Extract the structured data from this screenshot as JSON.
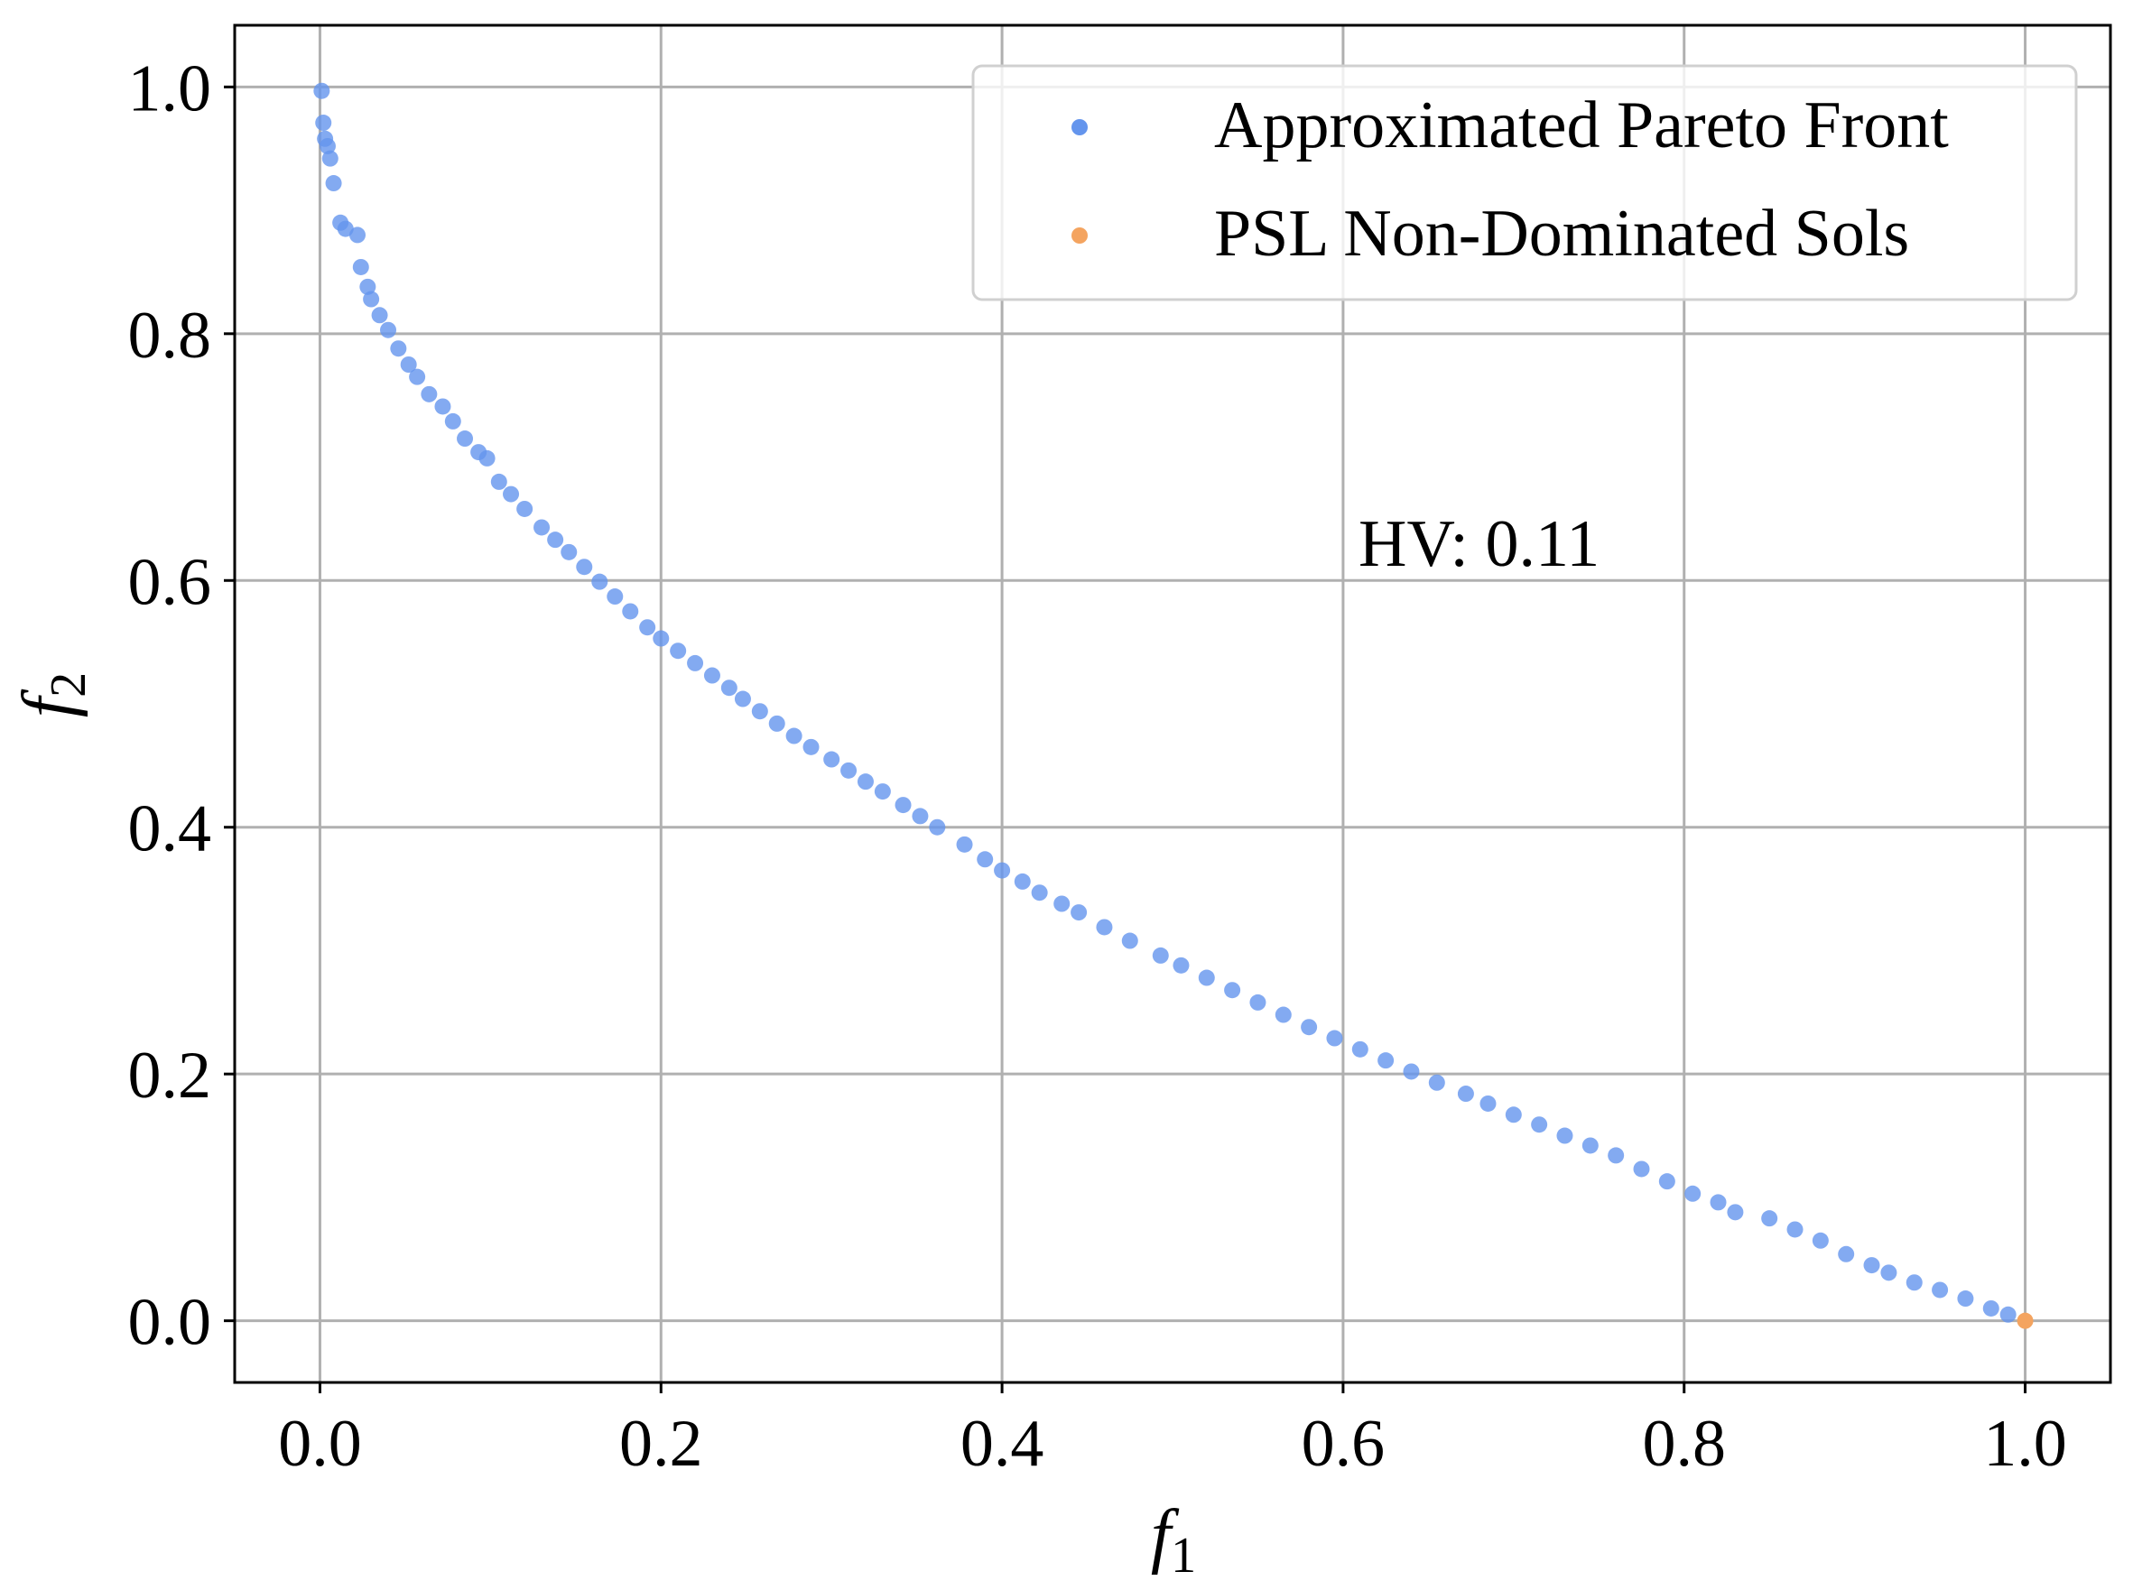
{
  "chart_data": {
    "type": "scatter",
    "title": "",
    "xlabel": "f",
    "xlabel_sub": "1",
    "ylabel": "f",
    "ylabel_sub": "2",
    "xlim": [
      -0.05,
      1.05
    ],
    "ylim": [
      -0.05,
      1.05
    ],
    "xticks": [
      0.0,
      0.2,
      0.4,
      0.6,
      0.8,
      1.0
    ],
    "yticks": [
      0.0,
      0.2,
      0.4,
      0.6,
      0.8,
      1.0
    ],
    "xtick_labels": [
      "0.0",
      "0.2",
      "0.4",
      "0.6",
      "0.8",
      "1.0"
    ],
    "ytick_labels": [
      "0.0",
      "0.2",
      "0.4",
      "0.6",
      "0.8",
      "1.0"
    ],
    "grid": true,
    "legend_position": "top-right",
    "annotation": "HV: 0.11",
    "series": [
      {
        "name": "Approximated Pareto Front",
        "color": "#6495ED",
        "points": [
          [
            0.001,
            0.9968
          ],
          [
            0.002,
            0.971
          ],
          [
            0.003,
            0.958
          ],
          [
            0.0045,
            0.952
          ],
          [
            0.006,
            0.942
          ],
          [
            0.008,
            0.922
          ],
          [
            0.012,
            0.89
          ],
          [
            0.015,
            0.885
          ],
          [
            0.022,
            0.88
          ],
          [
            0.024,
            0.854
          ],
          [
            0.028,
            0.838
          ],
          [
            0.03,
            0.828
          ],
          [
            0.035,
            0.815
          ],
          [
            0.04,
            0.803
          ],
          [
            0.046,
            0.788
          ],
          [
            0.052,
            0.775
          ],
          [
            0.057,
            0.765
          ],
          [
            0.064,
            0.751
          ],
          [
            0.072,
            0.741
          ],
          [
            0.078,
            0.729
          ],
          [
            0.085,
            0.715
          ],
          [
            0.093,
            0.704
          ],
          [
            0.098,
            0.699
          ],
          [
            0.105,
            0.68
          ],
          [
            0.112,
            0.67
          ],
          [
            0.12,
            0.658
          ],
          [
            0.13,
            0.643
          ],
          [
            0.138,
            0.633
          ],
          [
            0.146,
            0.623
          ],
          [
            0.155,
            0.611
          ],
          [
            0.164,
            0.599
          ],
          [
            0.173,
            0.587
          ],
          [
            0.182,
            0.575
          ],
          [
            0.192,
            0.562
          ],
          [
            0.2,
            0.553
          ],
          [
            0.21,
            0.543
          ],
          [
            0.22,
            0.533
          ],
          [
            0.23,
            0.523
          ],
          [
            0.24,
            0.513
          ],
          [
            0.248,
            0.504
          ],
          [
            0.258,
            0.494
          ],
          [
            0.268,
            0.484
          ],
          [
            0.278,
            0.474
          ],
          [
            0.288,
            0.465
          ],
          [
            0.3,
            0.455
          ],
          [
            0.31,
            0.446
          ],
          [
            0.32,
            0.437
          ],
          [
            0.33,
            0.429
          ],
          [
            0.342,
            0.418
          ],
          [
            0.352,
            0.409
          ],
          [
            0.362,
            0.4
          ],
          [
            0.378,
            0.386
          ],
          [
            0.39,
            0.374
          ],
          [
            0.4,
            0.365
          ],
          [
            0.412,
            0.356
          ],
          [
            0.422,
            0.347
          ],
          [
            0.435,
            0.338
          ],
          [
            0.445,
            0.331
          ],
          [
            0.46,
            0.319
          ],
          [
            0.475,
            0.308
          ],
          [
            0.493,
            0.296
          ],
          [
            0.505,
            0.288
          ],
          [
            0.52,
            0.278
          ],
          [
            0.535,
            0.268
          ],
          [
            0.55,
            0.258
          ],
          [
            0.565,
            0.248
          ],
          [
            0.58,
            0.238
          ],
          [
            0.595,
            0.229
          ],
          [
            0.61,
            0.22
          ],
          [
            0.625,
            0.211
          ],
          [
            0.64,
            0.202
          ],
          [
            0.655,
            0.193
          ],
          [
            0.672,
            0.184
          ],
          [
            0.685,
            0.176
          ],
          [
            0.7,
            0.167
          ],
          [
            0.715,
            0.159
          ],
          [
            0.73,
            0.15
          ],
          [
            0.745,
            0.142
          ],
          [
            0.76,
            0.134
          ],
          [
            0.775,
            0.123
          ],
          [
            0.79,
            0.113
          ],
          [
            0.805,
            0.103
          ],
          [
            0.82,
            0.096
          ],
          [
            0.83,
            0.088
          ],
          [
            0.85,
            0.083
          ],
          [
            0.865,
            0.074
          ],
          [
            0.88,
            0.065
          ],
          [
            0.895,
            0.054
          ],
          [
            0.91,
            0.045
          ],
          [
            0.92,
            0.039
          ],
          [
            0.935,
            0.031
          ],
          [
            0.95,
            0.025
          ],
          [
            0.965,
            0.018
          ],
          [
            0.98,
            0.01
          ],
          [
            0.99,
            0.005
          ]
        ]
      },
      {
        "name": "PSL Non-Dominated Sols",
        "color": "#F4A460",
        "points": [
          [
            1.0,
            0.0
          ]
        ]
      }
    ]
  }
}
